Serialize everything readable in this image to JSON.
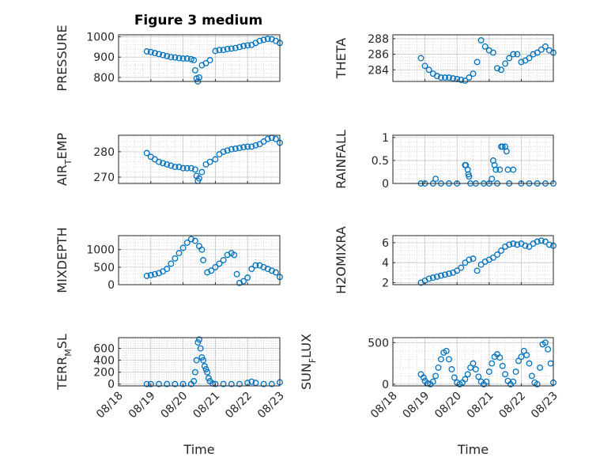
{
  "figure": {
    "title": "Figure 3 medium"
  },
  "chart_data": [
    {
      "type": "scatter",
      "ylabel": "PRESSURE",
      "ylim": [
        780,
        1010
      ],
      "yticks": [
        800,
        900,
        1000
      ],
      "ytick_labels": [
        "800",
        "900",
        "1000"
      ],
      "xlim": [
        "08/18",
        "08/23"
      ],
      "x": [
        "08/18 21:00",
        "08/19 00:00",
        "08/19 03:00",
        "08/19 06:00",
        "08/19 09:00",
        "08/19 12:00",
        "08/19 15:00",
        "08/19 18:00",
        "08/19 21:00",
        "08/20 00:00",
        "08/20 03:00",
        "08/20 06:00",
        "08/20 08:00",
        "08/20 09:00",
        "08/20 10:00",
        "08/20 11:00",
        "08/20 12:00",
        "08/20 14:00",
        "08/20 17:00",
        "08/20 20:00",
        "08/21 00:00",
        "08/21 03:00",
        "08/21 06:00",
        "08/21 09:00",
        "08/21 12:00",
        "08/21 15:00",
        "08/21 18:00",
        "08/21 21:00",
        "08/22 00:00",
        "08/22 03:00",
        "08/22 06:00",
        "08/22 09:00",
        "08/22 12:00",
        "08/22 15:00",
        "08/22 18:00",
        "08/22 21:00",
        "08/23 00:00"
      ],
      "y": [
        928,
        925,
        920,
        915,
        910,
        905,
        900,
        898,
        895,
        893,
        893,
        890,
        885,
        835,
        795,
        780,
        800,
        860,
        870,
        885,
        930,
        935,
        935,
        940,
        942,
        945,
        950,
        955,
        958,
        960,
        970,
        980,
        985,
        990,
        988,
        980,
        970
      ],
      "grid": true
    },
    {
      "type": "scatter",
      "ylabel": "THETA",
      "ylim": [
        282.5,
        288.5
      ],
      "yticks": [
        284,
        286,
        288
      ],
      "ytick_labels": [
        "284",
        "286",
        "288"
      ],
      "xlim": [
        "08/18",
        "08/23"
      ],
      "x": [
        "08/18 21:00",
        "08/19 00:00",
        "08/19 03:00",
        "08/19 06:00",
        "08/19 09:00",
        "08/19 12:00",
        "08/19 15:00",
        "08/19 18:00",
        "08/19 21:00",
        "08/20 00:00",
        "08/20 03:00",
        "08/20 06:00",
        "08/20 09:00",
        "08/20 12:00",
        "08/20 15:00",
        "08/20 18:00",
        "08/20 21:00",
        "08/21 00:00",
        "08/21 03:00",
        "08/21 06:00",
        "08/21 09:00",
        "08/21 12:00",
        "08/21 15:00",
        "08/21 18:00",
        "08/21 21:00",
        "08/22 00:00",
        "08/22 03:00",
        "08/22 06:00",
        "08/22 09:00",
        "08/22 12:00",
        "08/22 15:00",
        "08/22 18:00",
        "08/22 21:00",
        "08/23 00:00"
      ],
      "y": [
        285.5,
        284.5,
        284.0,
        283.5,
        283.2,
        283.0,
        283.0,
        283.0,
        282.9,
        282.8,
        282.7,
        282.6,
        283.0,
        283.5,
        285.0,
        287.8,
        287.0,
        286.5,
        286.2,
        284.2,
        284.0,
        284.8,
        285.5,
        286.0,
        286.0,
        285.0,
        285.2,
        285.5,
        286.0,
        286.2,
        286.6,
        287.0,
        286.5,
        286.2
      ],
      "grid": true
    },
    {
      "type": "scatter",
      "ylabel": "AIR_TEMP",
      "ylabel_base": "AIR",
      "ylabel_sub": "T",
      "ylabel_rest": "EMP",
      "ylim": [
        267.5,
        286.5
      ],
      "yticks": [
        270,
        280
      ],
      "ytick_labels": [
        "270",
        "280"
      ],
      "xlim": [
        "08/18",
        "08/23"
      ],
      "x": [
        "08/18 21:00",
        "08/19 00:00",
        "08/19 03:00",
        "08/19 06:00",
        "08/19 09:00",
        "08/19 12:00",
        "08/19 15:00",
        "08/19 18:00",
        "08/19 21:00",
        "08/20 00:00",
        "08/20 03:00",
        "08/20 06:00",
        "08/20 09:00",
        "08/20 10:00",
        "08/20 11:00",
        "08/20 12:00",
        "08/20 14:00",
        "08/20 17:00",
        "08/20 20:00",
        "08/21 00:00",
        "08/21 03:00",
        "08/21 06:00",
        "08/21 09:00",
        "08/21 12:00",
        "08/21 15:00",
        "08/21 18:00",
        "08/21 21:00",
        "08/22 00:00",
        "08/22 03:00",
        "08/22 06:00",
        "08/22 09:00",
        "08/22 12:00",
        "08/22 15:00",
        "08/22 18:00",
        "08/22 21:00",
        "08/23 00:00"
      ],
      "y": [
        279.5,
        278.0,
        277.0,
        276.0,
        275.5,
        275.0,
        274.5,
        274.0,
        274.0,
        273.5,
        273.5,
        273.5,
        273.0,
        270.5,
        268.5,
        269.5,
        272.0,
        275.0,
        276.0,
        277.0,
        279.0,
        280.0,
        280.5,
        281.0,
        281.2,
        281.5,
        281.8,
        282.0,
        282.0,
        282.5,
        283.0,
        284.0,
        285.0,
        285.5,
        285.0,
        283.5
      ],
      "grid": true
    },
    {
      "type": "scatter",
      "ylabel": "RAINFALL",
      "ylim": [
        0,
        1.05
      ],
      "yticks": [
        0,
        0.5,
        1
      ],
      "ytick_labels": [
        "0",
        "0.5",
        "1"
      ],
      "xlim": [
        "08/18",
        "08/23"
      ],
      "x": [
        "08/18 21:00",
        "08/19 00:00",
        "08/19 06:00",
        "08/19 08:00",
        "08/19 12:00",
        "08/19 18:00",
        "08/20 00:00",
        "08/20 06:00",
        "08/20 06:30",
        "08/20 08:00",
        "08/20 08:30",
        "08/20 09:00",
        "08/20 10:00",
        "08/20 14:00",
        "08/20 20:00",
        "08/21 00:00",
        "08/21 02:00",
        "08/21 03:00",
        "08/21 04:00",
        "08/21 05:00",
        "08/21 06:00",
        "08/21 08:00",
        "08/21 09:00",
        "08/21 10:00",
        "08/21 12:00",
        "08/21 13:00",
        "08/21 14:00",
        "08/21 15:00",
        "08/21 18:00",
        "08/22 00:00",
        "08/22 06:00",
        "08/22 12:00",
        "08/22 18:00",
        "08/23 00:00"
      ],
      "y": [
        0,
        0,
        0,
        0.1,
        0,
        0,
        0,
        0.4,
        0.4,
        0.3,
        0.2,
        0.15,
        0,
        0,
        0,
        0,
        0.1,
        0.5,
        0.4,
        0.3,
        0,
        0.3,
        0.8,
        0.8,
        0.8,
        0.7,
        0.3,
        0,
        0.3,
        0,
        0,
        0,
        0,
        0
      ],
      "grid": true
    },
    {
      "type": "scatter",
      "ylabel": "MIXDEPTH",
      "ylim": [
        0,
        1400
      ],
      "yticks": [
        0,
        500,
        1000
      ],
      "ytick_labels": [
        "0",
        "500",
        "1000"
      ],
      "xlim": [
        "08/18",
        "08/23"
      ],
      "x": [
        "08/18 21:00",
        "08/19 00:00",
        "08/19 03:00",
        "08/19 06:00",
        "08/19 09:00",
        "08/19 12:00",
        "08/19 15:00",
        "08/19 18:00",
        "08/19 21:00",
        "08/20 00:00",
        "08/20 03:00",
        "08/20 06:00",
        "08/20 09:00",
        "08/20 12:00",
        "08/20 14:00",
        "08/20 15:00",
        "08/20 18:00",
        "08/20 21:00",
        "08/21 00:00",
        "08/21 03:00",
        "08/21 06:00",
        "08/21 09:00",
        "08/21 12:00",
        "08/21 14:00",
        "08/21 16:00",
        "08/21 18:00",
        "08/21 21:00",
        "08/22 00:00",
        "08/22 03:00",
        "08/22 06:00",
        "08/22 09:00",
        "08/22 12:00",
        "08/22 15:00",
        "08/22 18:00",
        "08/22 21:00",
        "08/23 00:00"
      ],
      "y": [
        250,
        270,
        300,
        330,
        380,
        450,
        600,
        750,
        900,
        1050,
        1200,
        1300,
        1250,
        1100,
        1000,
        700,
        350,
        400,
        500,
        600,
        700,
        850,
        900,
        850,
        300,
        50,
        100,
        200,
        450,
        550,
        550,
        500,
        450,
        400,
        350,
        220
      ],
      "grid": true
    },
    {
      "type": "scatter",
      "ylabel": "H2OMIXRA",
      "ylim": [
        1.8,
        6.7
      ],
      "yticks": [
        2,
        4,
        6
      ],
      "ytick_labels": [
        "2",
        "4",
        "6"
      ],
      "xlim": [
        "08/18",
        "08/23"
      ],
      "x": [
        "08/18 21:00",
        "08/19 00:00",
        "08/19 03:00",
        "08/19 06:00",
        "08/19 09:00",
        "08/19 12:00",
        "08/19 15:00",
        "08/19 18:00",
        "08/19 21:00",
        "08/20 00:00",
        "08/20 03:00",
        "08/20 06:00",
        "08/20 09:00",
        "08/20 12:00",
        "08/20 15:00",
        "08/20 18:00",
        "08/20 21:00",
        "08/21 00:00",
        "08/21 03:00",
        "08/21 06:00",
        "08/21 09:00",
        "08/21 12:00",
        "08/21 15:00",
        "08/21 18:00",
        "08/21 21:00",
        "08/22 00:00",
        "08/22 03:00",
        "08/22 06:00",
        "08/22 09:00",
        "08/22 12:00",
        "08/22 15:00",
        "08/22 18:00",
        "08/22 21:00",
        "08/23 00:00"
      ],
      "y": [
        2.0,
        2.2,
        2.4,
        2.5,
        2.6,
        2.7,
        2.8,
        2.9,
        3.0,
        3.2,
        3.5,
        4.0,
        4.3,
        4.4,
        3.2,
        3.8,
        4.1,
        4.3,
        4.5,
        4.8,
        5.2,
        5.6,
        5.8,
        5.9,
        5.8,
        5.9,
        5.7,
        5.6,
        5.9,
        6.1,
        6.2,
        6.1,
        5.8,
        5.7
      ],
      "grid": true
    },
    {
      "type": "scatter",
      "ylabel": "TERR_MSL",
      "ylabel_base": "TERR",
      "ylabel_sub": "M",
      "ylabel_rest": "SL",
      "ylim": [
        -30,
        780
      ],
      "yticks": [
        0,
        200,
        400,
        600
      ],
      "ytick_labels": [
        "0",
        "200",
        "400",
        "600"
      ],
      "xlim": [
        "08/18",
        "08/23"
      ],
      "xticks": [
        "08/18",
        "08/19",
        "08/20",
        "08/21",
        "08/22",
        "08/23"
      ],
      "xtick_labels": [
        "08/18",
        "08/19",
        "08/20",
        "08/21",
        "08/22",
        "08/23"
      ],
      "xlabel": "Time",
      "x": [
        "08/18 21:00",
        "08/19 00:00",
        "08/19 06:00",
        "08/19 12:00",
        "08/19 18:00",
        "08/20 00:00",
        "08/20 06:00",
        "08/20 08:00",
        "08/20 09:00",
        "08/20 10:00",
        "08/20 11:00",
        "08/20 12:00",
        "08/20 13:00",
        "08/20 14:00",
        "08/20 15:00",
        "08/20 16:00",
        "08/20 17:00",
        "08/20 18:00",
        "08/20 19:00",
        "08/20 20:00",
        "08/20 22:00",
        "08/21 00:00",
        "08/21 06:00",
        "08/21 12:00",
        "08/21 18:00",
        "08/22 00:00",
        "08/22 03:00",
        "08/22 06:00",
        "08/22 12:00",
        "08/22 18:00",
        "08/23 00:00"
      ],
      "y": [
        0,
        0,
        0,
        0,
        0,
        0,
        0,
        50,
        200,
        400,
        700,
        750,
        600,
        450,
        400,
        300,
        250,
        200,
        100,
        50,
        10,
        0,
        0,
        0,
        0,
        20,
        40,
        20,
        0,
        0,
        30
      ],
      "grid": true
    },
    {
      "type": "scatter",
      "ylabel": "SUN_FLUX",
      "ylabel_base": "SUN",
      "ylabel_sub": "F",
      "ylabel_rest": "LUX",
      "ylim": [
        -20,
        560
      ],
      "yticks": [
        0,
        500
      ],
      "ytick_labels": [
        "0",
        "500"
      ],
      "xlim": [
        "08/18",
        "08/23"
      ],
      "xticks": [
        "08/18",
        "08/19",
        "08/20",
        "08/21",
        "08/22",
        "08/23"
      ],
      "xtick_labels": [
        "08/18",
        "08/19",
        "08/20",
        "08/21",
        "08/22",
        "08/23"
      ],
      "xlabel": "Time",
      "x": [
        "08/18 21:00",
        "08/18 23:00",
        "08/19 00:00",
        "08/19 02:00",
        "08/19 04:00",
        "08/19 06:00",
        "08/19 08:00",
        "08/19 10:00",
        "08/19 12:00",
        "08/19 14:00",
        "08/19 16:00",
        "08/19 18:00",
        "08/19 20:00",
        "08/19 22:00",
        "08/20 00:00",
        "08/20 02:00",
        "08/20 04:00",
        "08/20 06:00",
        "08/20 08:00",
        "08/20 10:00",
        "08/20 12:00",
        "08/20 14:00",
        "08/20 16:00",
        "08/20 18:00",
        "08/20 20:00",
        "08/20 22:00",
        "08/21 00:00",
        "08/21 02:00",
        "08/21 04:00",
        "08/21 06:00",
        "08/21 08:00",
        "08/21 10:00",
        "08/21 12:00",
        "08/21 14:00",
        "08/21 16:00",
        "08/21 18:00",
        "08/21 20:00",
        "08/21 22:00",
        "08/22 00:00",
        "08/22 02:00",
        "08/22 04:00",
        "08/22 06:00",
        "08/22 08:00",
        "08/22 10:00",
        "08/22 12:00",
        "08/22 14:00",
        "08/22 16:00",
        "08/22 18:00",
        "08/22 20:00",
        "08/22 22:00",
        "08/23 00:00"
      ],
      "y": [
        120,
        80,
        40,
        10,
        0,
        30,
        100,
        200,
        300,
        380,
        400,
        300,
        180,
        80,
        20,
        0,
        20,
        60,
        120,
        200,
        250,
        180,
        90,
        30,
        0,
        30,
        150,
        250,
        330,
        360,
        320,
        220,
        120,
        40,
        0,
        30,
        150,
        280,
        330,
        400,
        350,
        250,
        100,
        20,
        0,
        200,
        480,
        500,
        420,
        250,
        20
      ],
      "grid": true
    }
  ]
}
